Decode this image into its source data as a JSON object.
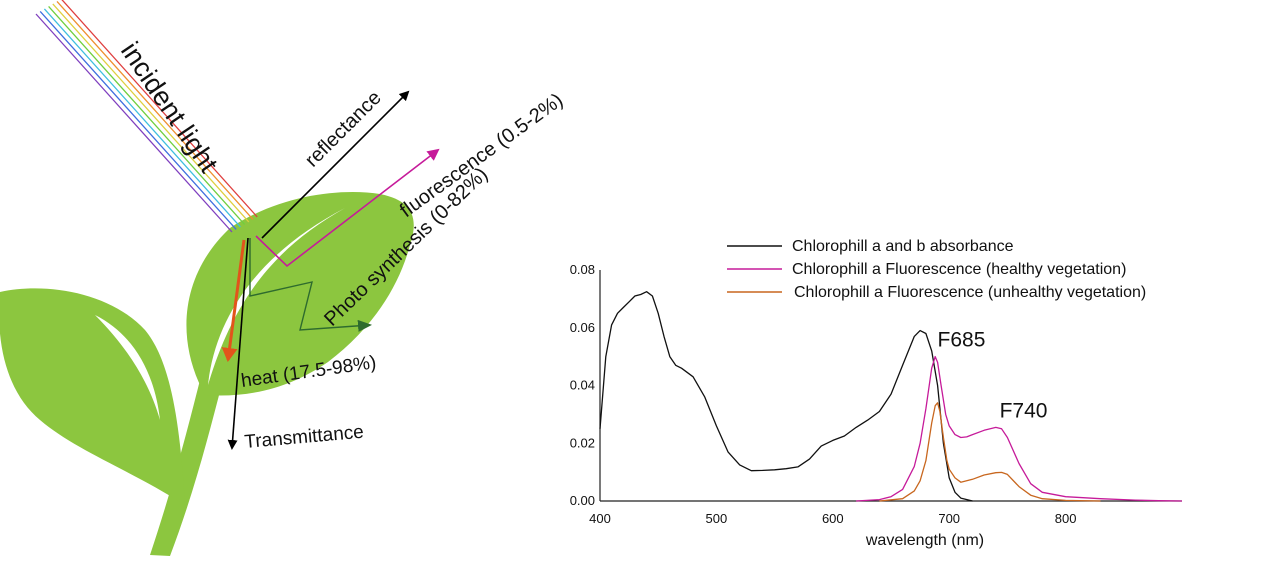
{
  "diagram": {
    "incident_label": "incident light",
    "reflectance_label": "reflectance",
    "fluorescence_label": "fluorescence (0.5-2%)",
    "photosynthesis_label": "Photo synthesis (0-82%)",
    "heat_label": "heat (17.5-98%)",
    "transmittance_label": "Transmittance",
    "colors": {
      "leaf": "#8cc63f",
      "leaf_vein": "#ffffff",
      "reflectance_arrow": "#000000",
      "fluorescence_arrow": "#c61b9a",
      "photosynthesis_arrow": "#2e6b2e",
      "heat_arrow": "#e2541b",
      "transmittance_arrow": "#000000",
      "light_rays": [
        "#7f3fbf",
        "#3f6fdf",
        "#3fbfdf",
        "#6fcf3f",
        "#dfcf3f",
        "#ef8f2f",
        "#df3f3f"
      ]
    }
  },
  "chart_data": {
    "type": "line",
    "xlabel": "wavelength (nm)",
    "ylabel": "",
    "xlim": [
      400,
      900
    ],
    "ylim": [
      0,
      0.08
    ],
    "x_ticks": [
      "400",
      "500",
      "600",
      "700",
      "800"
    ],
    "y_ticks": [
      "0.00",
      "0.02",
      "0.04",
      "0.06",
      "0.08"
    ],
    "legend_position": "top",
    "series": [
      {
        "name": "Chlorophill a and b absorbance",
        "color": "#111111",
        "x": [
          400,
          405,
          410,
          415,
          420,
          425,
          430,
          435,
          440,
          445,
          450,
          455,
          460,
          465,
          470,
          480,
          490,
          500,
          510,
          520,
          530,
          540,
          550,
          560,
          570,
          580,
          590,
          600,
          610,
          620,
          630,
          640,
          650,
          660,
          670,
          675,
          680,
          685,
          690,
          695,
          700,
          705,
          710,
          720
        ],
        "y": [
          0.025,
          0.05,
          0.061,
          0.065,
          0.067,
          0.069,
          0.071,
          0.0715,
          0.0725,
          0.071,
          0.065,
          0.057,
          0.05,
          0.047,
          0.046,
          0.043,
          0.036,
          0.026,
          0.017,
          0.0125,
          0.0105,
          0.0106,
          0.0108,
          0.0112,
          0.0118,
          0.0145,
          0.019,
          0.021,
          0.0225,
          0.0255,
          0.028,
          0.031,
          0.037,
          0.047,
          0.057,
          0.059,
          0.058,
          0.052,
          0.04,
          0.02,
          0.008,
          0.003,
          0.001,
          0.0
        ]
      },
      {
        "name": "Chlorophill a Fluorescence (healthy vegetation)",
        "color": "#c61b9a",
        "x": [
          620,
          640,
          650,
          660,
          670,
          675,
          680,
          685,
          688,
          690,
          693,
          697,
          700,
          705,
          710,
          715,
          720,
          730,
          740,
          745,
          750,
          760,
          770,
          780,
          800,
          830,
          860,
          880,
          900
        ],
        "y": [
          0.0,
          0.0005,
          0.0015,
          0.004,
          0.012,
          0.02,
          0.032,
          0.046,
          0.05,
          0.048,
          0.04,
          0.03,
          0.026,
          0.023,
          0.022,
          0.0222,
          0.023,
          0.0245,
          0.0255,
          0.025,
          0.022,
          0.013,
          0.006,
          0.003,
          0.0015,
          0.0008,
          0.0003,
          0.0001,
          0.0
        ]
      },
      {
        "name": "Chlorophill a Fluorescence (unhealthy vegetation)",
        "color": "#c8671f",
        "x": [
          640,
          660,
          670,
          675,
          680,
          685,
          688,
          690,
          692,
          695,
          698,
          700,
          705,
          710,
          720,
          730,
          740,
          745,
          750,
          760,
          770,
          780,
          800,
          830
        ],
        "y": [
          0.0,
          0.0008,
          0.0035,
          0.007,
          0.014,
          0.027,
          0.033,
          0.034,
          0.031,
          0.022,
          0.014,
          0.011,
          0.008,
          0.0065,
          0.0075,
          0.009,
          0.0098,
          0.0099,
          0.0092,
          0.005,
          0.002,
          0.0008,
          0.0002,
          0.0
        ]
      }
    ],
    "annotations": [
      {
        "text": "F685",
        "x": 690,
        "y": 0.05
      },
      {
        "text": "F740",
        "x": 745,
        "y": 0.0255
      }
    ]
  }
}
